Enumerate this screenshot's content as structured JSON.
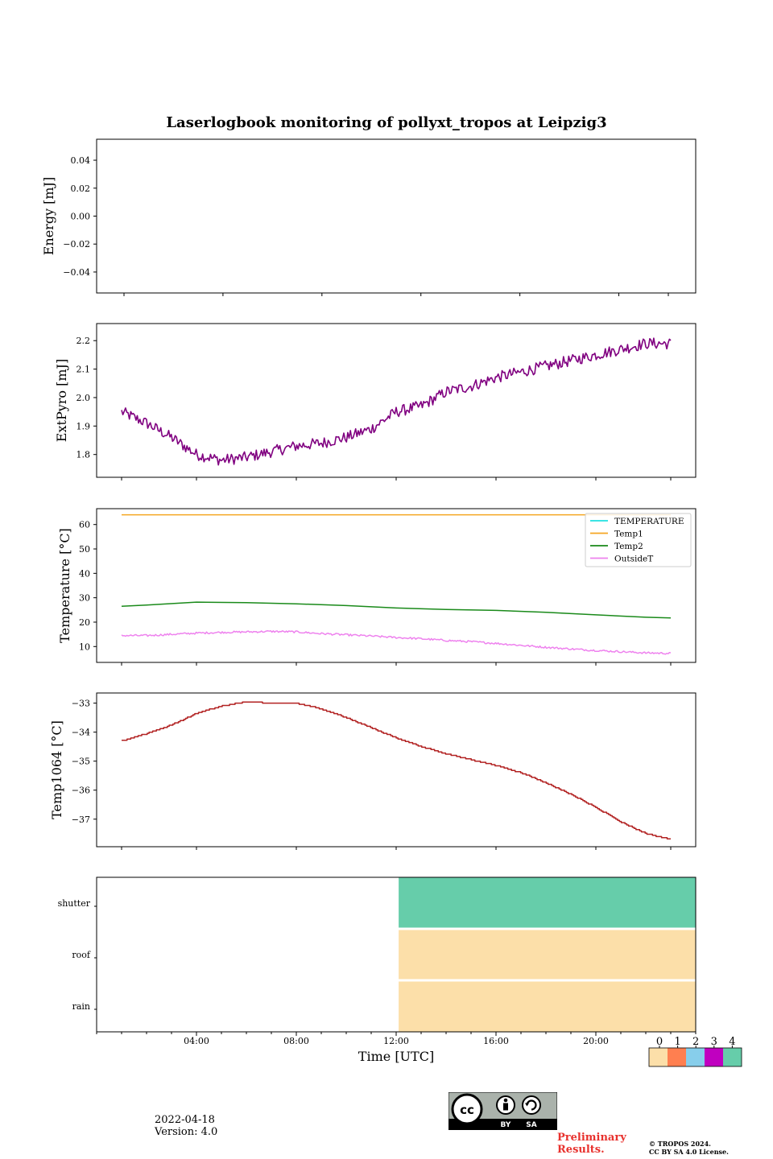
{
  "chart_data": {
    "title": "Laserlogbook monitoring of pollyxt_tropos at Leipzig3",
    "xlabel": "Time [UTC]",
    "x_ticks": [
      "04:00",
      "08:00",
      "12:00",
      "16:00",
      "20:00"
    ],
    "panels": [
      {
        "type": "line",
        "ylabel": "Energy [mJ]",
        "ylim": [
          -0.055,
          0.055
        ],
        "yticks": [
          0.04,
          0.02,
          0.0,
          -0.02,
          -0.04
        ],
        "ytick_labels": [
          "0.04",
          "0.02",
          "0.00",
          "−0.02",
          "−0.04"
        ],
        "series": []
      },
      {
        "type": "line",
        "ylabel": "ExtPyro [mJ]",
        "ylim": [
          1.72,
          2.26
        ],
        "yticks": [
          2.2,
          2.1,
          2.0,
          1.9,
          1.8
        ],
        "ytick_labels": [
          "2.2",
          "2.1",
          "2.0",
          "1.9",
          "1.8"
        ],
        "series": [
          {
            "name": "ExtPyro",
            "color": "#800080",
            "x": [
              1,
              2,
              3,
              4,
              5,
              6,
              7,
              8,
              9,
              10,
              11,
              12,
              13,
              14,
              15,
              16,
              17,
              18,
              19,
              20,
              21,
              22,
              23
            ],
            "values": [
              1.95,
              1.91,
              1.86,
              1.8,
              1.78,
              1.79,
              1.81,
              1.83,
              1.84,
              1.86,
              1.89,
              1.95,
              1.97,
              2.02,
              2.04,
              2.07,
              2.09,
              2.11,
              2.13,
              2.15,
              2.17,
              2.19,
              2.19
            ],
            "noise": 0.02
          }
        ]
      },
      {
        "type": "line",
        "ylabel": "Temperature [°C]",
        "ylim": [
          3.5,
          66.5
        ],
        "yticks": [
          60,
          50,
          40,
          30,
          20,
          10
        ],
        "ytick_labels": [
          "60",
          "50",
          "40",
          "30",
          "20",
          "10"
        ],
        "legend": {
          "location": "upper right"
        },
        "series": [
          {
            "name": "TEMPERATURE",
            "color": "#20e0e0",
            "x": [],
            "values": []
          },
          {
            "name": "Temp1",
            "color": "#f5a623",
            "x": [
              1,
              23
            ],
            "values": [
              64,
              64
            ]
          },
          {
            "name": "Temp2",
            "color": "#1a8a1a",
            "x": [
              1,
              2,
              4,
              6,
              8,
              10,
              12,
              14,
              16,
              18,
              20,
              22,
              23
            ],
            "values": [
              26.5,
              27,
              28.2,
              28,
              27.5,
              26.8,
              25.8,
              25.2,
              24.8,
              24,
              23,
              22,
              21.7
            ]
          },
          {
            "name": "OutsideT",
            "color": "#ee82ee",
            "x": [
              1,
              2,
              3,
              4,
              5,
              6,
              7,
              8,
              9,
              10,
              11,
              12,
              13,
              14,
              15,
              16,
              17,
              18,
              19,
              20,
              21,
              22,
              23
            ],
            "values": [
              14.5,
              14.5,
              15,
              15.5,
              15.8,
              16,
              16.2,
              16,
              15.3,
              14.8,
              14.3,
              13.7,
              13.2,
              12.5,
              12,
              11.3,
              10.5,
              9.7,
              9,
              8.4,
              7.9,
              7.4,
              7.2
            ],
            "noise": 0.4
          }
        ]
      },
      {
        "type": "line",
        "ylabel": "Temp1064 [°C]",
        "ylim": [
          -37.95,
          -32.65
        ],
        "yticks": [
          -33,
          -34,
          -35,
          -36,
          -37
        ],
        "ytick_labels": [
          "−33",
          "−34",
          "−35",
          "−36",
          "−37"
        ],
        "series": [
          {
            "name": "Temp1064",
            "color": "#b22222",
            "x": [
              1,
              2,
              3,
              4,
              5,
              6,
              7,
              8,
              9,
              10,
              11,
              12,
              13,
              14,
              15,
              16,
              17,
              18,
              19,
              20,
              21,
              22,
              23
            ],
            "values": [
              -34.3,
              -34.05,
              -33.75,
              -33.35,
              -33.1,
              -32.95,
              -33.0,
              -33.0,
              -33.2,
              -33.5,
              -33.85,
              -34.2,
              -34.5,
              -34.75,
              -34.95,
              -35.15,
              -35.4,
              -35.75,
              -36.15,
              -36.6,
              -37.1,
              -37.5,
              -37.7
            ],
            "step": 0.04
          }
        ]
      },
      {
        "type": "heatmap",
        "rows": [
          "shutter",
          "roof",
          "rain"
        ],
        "segments": [
          {
            "row": "shutter",
            "x_start": 12.1,
            "x_end": 24,
            "state": 4
          },
          {
            "row": "roof",
            "x_start": 12.1,
            "x_end": 24,
            "state": 0
          },
          {
            "row": "rain",
            "x_start": 12.1,
            "x_end": 24,
            "state": 0
          }
        ],
        "colorbar": {
          "labels": [
            "0",
            "1",
            "2",
            "3",
            "4"
          ],
          "colors": [
            "#fcdfa9",
            "#ff7f50",
            "#87ceeb",
            "#c000c0",
            "#66cdaa"
          ]
        }
      }
    ]
  },
  "footer": {
    "date": "2022-04-18",
    "version": "Version: 4.0",
    "preliminary": [
      "Preliminary",
      "Results."
    ],
    "copyright": [
      "© TROPOS 2024.",
      "CC BY SA 4.0 License."
    ],
    "license_badge": {
      "by": "BY",
      "sa": "SA"
    }
  }
}
